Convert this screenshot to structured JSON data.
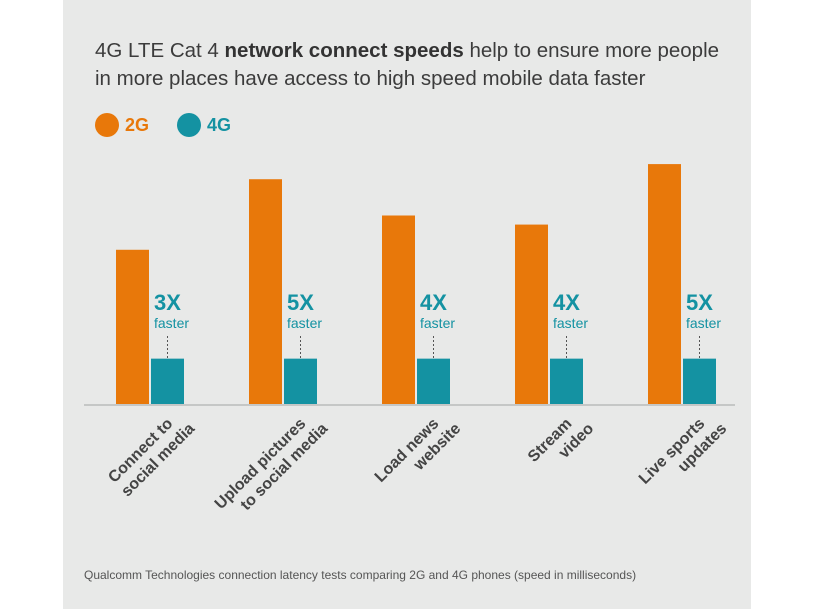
{
  "title": {
    "part1": "4G LTE Cat 4 ",
    "bold": "network connect speeds",
    "part2": " help to ensure more people in more places have access to high speed mobile data faster"
  },
  "legend": [
    {
      "label": "2G",
      "color": "#e8780a"
    },
    {
      "label": "4G",
      "color": "#1492a2"
    }
  ],
  "colors": {
    "panel": "#e8e9e8",
    "axis": "#b9bcbb",
    "label": "#444444"
  },
  "chart_data": {
    "type": "bar",
    "categories": [
      [
        "Connect to",
        "social media"
      ],
      [
        "Upload pictures",
        "to social media"
      ],
      [
        "Load news",
        "website"
      ],
      [
        "Stream",
        "video"
      ],
      [
        "Live sports",
        "updates"
      ]
    ],
    "series": [
      {
        "name": "2G",
        "values": [
          153,
          223,
          187,
          178,
          238
        ]
      },
      {
        "name": "4G",
        "values": [
          45,
          45,
          45,
          45,
          45
        ]
      }
    ],
    "annotations": [
      {
        "multiplier": "3X",
        "text": "faster"
      },
      {
        "multiplier": "5X",
        "text": "faster"
      },
      {
        "multiplier": "4X",
        "text": "faster"
      },
      {
        "multiplier": "4X",
        "text": "faster"
      },
      {
        "multiplier": "5X",
        "text": "faster"
      }
    ],
    "ylim": [
      0,
      250
    ]
  },
  "footnote": "Qualcomm Technologies connection latency tests comparing 2G and 4G phones (speed in milliseconds)"
}
